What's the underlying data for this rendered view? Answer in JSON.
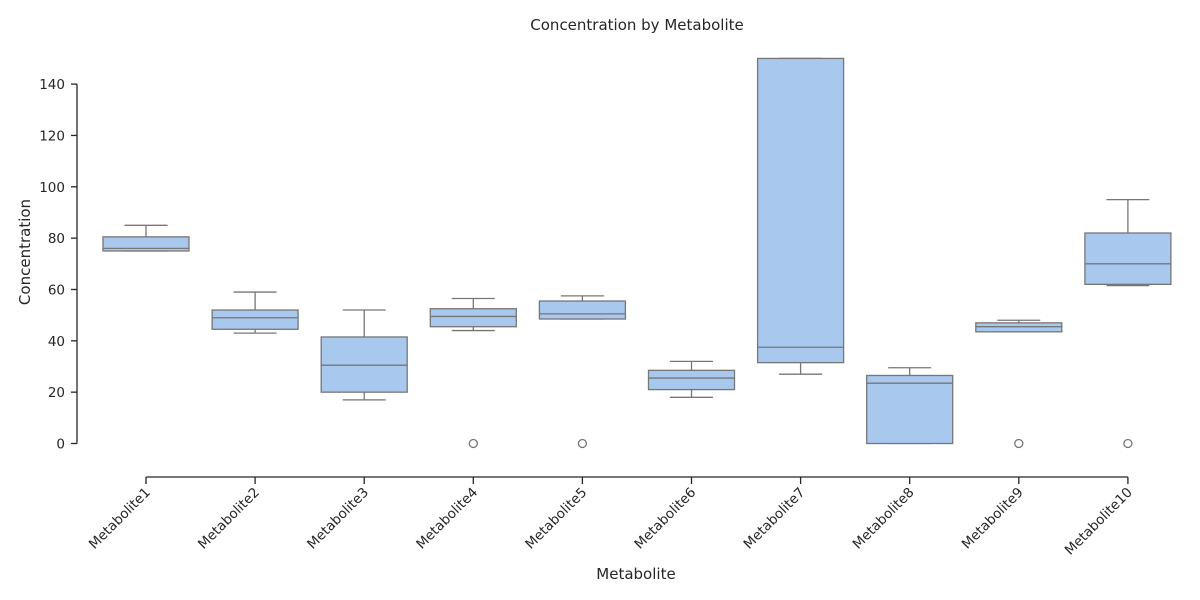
{
  "chart_data": {
    "type": "box",
    "title": "Concentration by Metabolite",
    "xlabel": "Metabolite",
    "ylabel": "Concentration",
    "ylim": [
      -13,
      150
    ],
    "yticks": [
      0,
      20,
      40,
      60,
      80,
      100,
      120,
      140
    ],
    "grid": false,
    "colors": {
      "box_fill": "#a9c8ee",
      "box_edge": "#767676",
      "axis": "#262626"
    },
    "categories": [
      "Metabolite1",
      "Metabolite2",
      "Metabolite3",
      "Metabolite4",
      "Metabolite5",
      "Metabolite6",
      "Metabolite7",
      "Metabolite8",
      "Metabolite9",
      "Metabolite10"
    ],
    "boxes": [
      {
        "category": "Metabolite1",
        "whislo": 75,
        "q1": 75,
        "med": 76,
        "q3": 80.5,
        "whishi": 85,
        "fliers": []
      },
      {
        "category": "Metabolite2",
        "whislo": 43,
        "q1": 44.5,
        "med": 49,
        "q3": 52,
        "whishi": 59,
        "fliers": []
      },
      {
        "category": "Metabolite3",
        "whislo": 17,
        "q1": 20,
        "med": 30.5,
        "q3": 41.5,
        "whishi": 52,
        "fliers": []
      },
      {
        "category": "Metabolite4",
        "whislo": 44,
        "q1": 45.5,
        "med": 49.5,
        "q3": 52.5,
        "whishi": 56.5,
        "fliers": [
          0
        ]
      },
      {
        "category": "Metabolite5",
        "whislo": 48.5,
        "q1": 48.5,
        "med": 50.5,
        "q3": 55.5,
        "whishi": 57.5,
        "fliers": [
          0
        ]
      },
      {
        "category": "Metabolite6",
        "whislo": 18,
        "q1": 21,
        "med": 25.5,
        "q3": 28.5,
        "whishi": 32,
        "fliers": []
      },
      {
        "category": "Metabolite7",
        "whislo": 27,
        "q1": 31.5,
        "med": 37.5,
        "q3": 150,
        "whishi": 150,
        "fliers": []
      },
      {
        "category": "Metabolite8",
        "whislo": 0,
        "q1": 0,
        "med": 23.5,
        "q3": 26.5,
        "whishi": 29.5,
        "fliers": []
      },
      {
        "category": "Metabolite9",
        "whislo": 43.5,
        "q1": 43.5,
        "med": 45.5,
        "q3": 47,
        "whishi": 48,
        "fliers": [
          0
        ]
      },
      {
        "category": "Metabolite10",
        "whislo": 61.5,
        "q1": 62,
        "med": 70,
        "q3": 82,
        "whishi": 95,
        "fliers": [
          0
        ]
      }
    ]
  }
}
